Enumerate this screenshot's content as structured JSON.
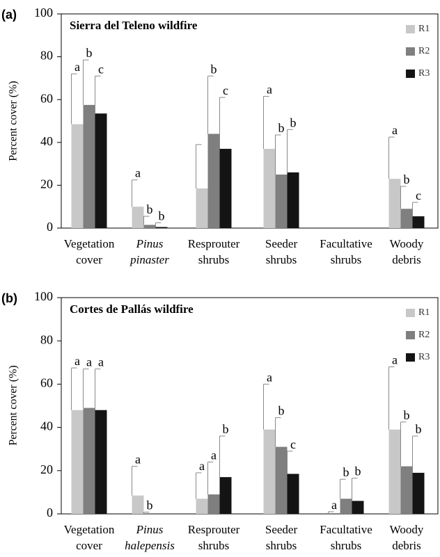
{
  "panels": [
    {
      "letter": "(a)",
      "title": "Sierra del Teleno wildfire",
      "ylabel": "Percent cover (%)",
      "yticks": [
        0,
        20,
        40,
        60,
        80,
        100
      ],
      "ylim": [
        0,
        100
      ],
      "categories": [
        {
          "line1": "Vegetation",
          "line2": "cover",
          "italic": false
        },
        {
          "line1": "Pinus",
          "line2": "pinaster",
          "italic": true
        },
        {
          "line1": "Resprouter",
          "line2": "shrubs",
          "italic": false
        },
        {
          "line1": "Seeder",
          "line2": "shrubs",
          "italic": false
        },
        {
          "line1": "Facultative",
          "line2": "shrubs",
          "italic": false
        },
        {
          "line1": "Woody",
          "line2": "debris",
          "italic": false
        }
      ],
      "legend": [
        "R1",
        "R2",
        "R3"
      ]
    },
    {
      "letter": "(b)",
      "title": "Cortes de Pallás wildfire",
      "ylabel": "Percent cover (%)",
      "yticks": [
        0,
        20,
        40,
        60,
        80,
        100
      ],
      "ylim": [
        0,
        100
      ],
      "categories": [
        {
          "line1": "Vegetation",
          "line2": "cover",
          "italic": false
        },
        {
          "line1": "Pinus",
          "line2": "halepensis",
          "italic": true
        },
        {
          "line1": "Resprouter",
          "line2": "shrubs",
          "italic": false
        },
        {
          "line1": "Seeder",
          "line2": "shrubs",
          "italic": false
        },
        {
          "line1": "Facultative",
          "line2": "shrubs",
          "italic": false
        },
        {
          "line1": "Woody",
          "line2": "debris",
          "italic": false
        }
      ],
      "legend": [
        "R1",
        "R2",
        "R3"
      ]
    }
  ],
  "colors": {
    "R1": "#c8c8c8",
    "R2": "#7f7f7f",
    "R3": "#141414"
  },
  "chart_data": [
    {
      "type": "bar",
      "title": "Sierra del Teleno wildfire",
      "ylabel": "Percent cover (%)",
      "ylim": [
        0,
        100
      ],
      "categories": [
        "Vegetation cover",
        "Pinus pinaster",
        "Resprouter shrubs",
        "Seeder shrubs",
        "Facultative shrubs",
        "Woody debris"
      ],
      "legend_position": "top-right",
      "series": [
        {
          "name": "R1",
          "values": [
            48.5,
            10,
            18.5,
            37,
            0,
            23
          ],
          "error": [
            23.5,
            12.5,
            20.5,
            24.5,
            0,
            19.5
          ],
          "letters": [
            "a",
            "a",
            "",
            "a",
            "",
            "a"
          ]
        },
        {
          "name": "R2",
          "values": [
            57.5,
            1.5,
            44,
            25,
            0,
            9
          ],
          "error": [
            21,
            4,
            27,
            18.5,
            0,
            10.5
          ],
          "letters": [
            "b",
            "b",
            "b",
            "b",
            "",
            "b"
          ]
        },
        {
          "name": "R3",
          "values": [
            53.5,
            0.5,
            37,
            26,
            0,
            5.5
          ],
          "error": [
            17.5,
            2,
            24,
            20,
            0,
            6.5
          ],
          "letters": [
            "c",
            "b",
            "c",
            "b",
            "",
            "c"
          ]
        }
      ]
    },
    {
      "type": "bar",
      "title": "Cortes de Pallás wildfire",
      "ylabel": "Percent cover (%)",
      "ylim": [
        0,
        100
      ],
      "categories": [
        "Vegetation cover",
        "Pinus halepensis",
        "Resprouter shrubs",
        "Seeder shrubs",
        "Facultative shrubs",
        "Woody debris"
      ],
      "legend_position": "top-right",
      "series": [
        {
          "name": "R1",
          "values": [
            48,
            8.5,
            7,
            39,
            0,
            39
          ],
          "error": [
            19.5,
            13.5,
            12,
            21,
            1,
            29
          ],
          "letters": [
            "a",
            "a",
            "a",
            "a",
            "a",
            "a"
          ]
        },
        {
          "name": "R2",
          "values": [
            49,
            0,
            9,
            31,
            7,
            22
          ],
          "error": [
            18,
            0.8,
            15,
            13.5,
            9,
            20.5
          ],
          "letters": [
            "a",
            "b",
            "a",
            "b",
            "b",
            "b"
          ]
        },
        {
          "name": "R3",
          "values": [
            48,
            0,
            17,
            18.5,
            6,
            19
          ],
          "error": [
            19,
            0,
            19,
            10.5,
            10.5,
            17
          ],
          "letters": [
            "a",
            "",
            "b",
            "c",
            "b",
            "b"
          ]
        }
      ]
    }
  ]
}
